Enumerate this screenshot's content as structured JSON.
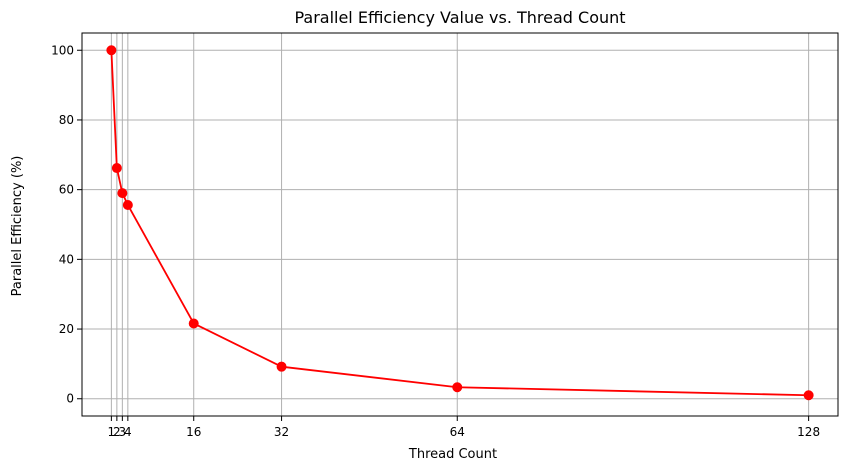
{
  "chart_data": {
    "type": "line",
    "title": "Parallel Efficiency Value vs. Thread Count",
    "xlabel": "Thread Count",
    "ylabel": "Parallel Efficiency (%)",
    "x": [
      1,
      2,
      3,
      4,
      16,
      32,
      64,
      128
    ],
    "series": [
      {
        "values": [
          100,
          66.2,
          59.0,
          55.6,
          21.6,
          9.2,
          3.3,
          1.0
        ],
        "color": "#ff0000",
        "marker": "circle"
      }
    ],
    "xticks": [
      1,
      2,
      3,
      4,
      16,
      32,
      64,
      128
    ],
    "xtick_labels": [
      "1",
      "2",
      "3",
      "4",
      "16",
      "32",
      "64",
      "128"
    ],
    "yticks": [
      0,
      20,
      40,
      60,
      80,
      100
    ],
    "ytick_labels": [
      "0",
      "20",
      "40",
      "60",
      "80",
      "100"
    ],
    "xlim": [
      -4.35,
      133.35
    ],
    "ylim": [
      -4.95,
      104.95
    ],
    "grid": true,
    "grid_color": "#b0b0b0",
    "axis_color": "#000000"
  }
}
